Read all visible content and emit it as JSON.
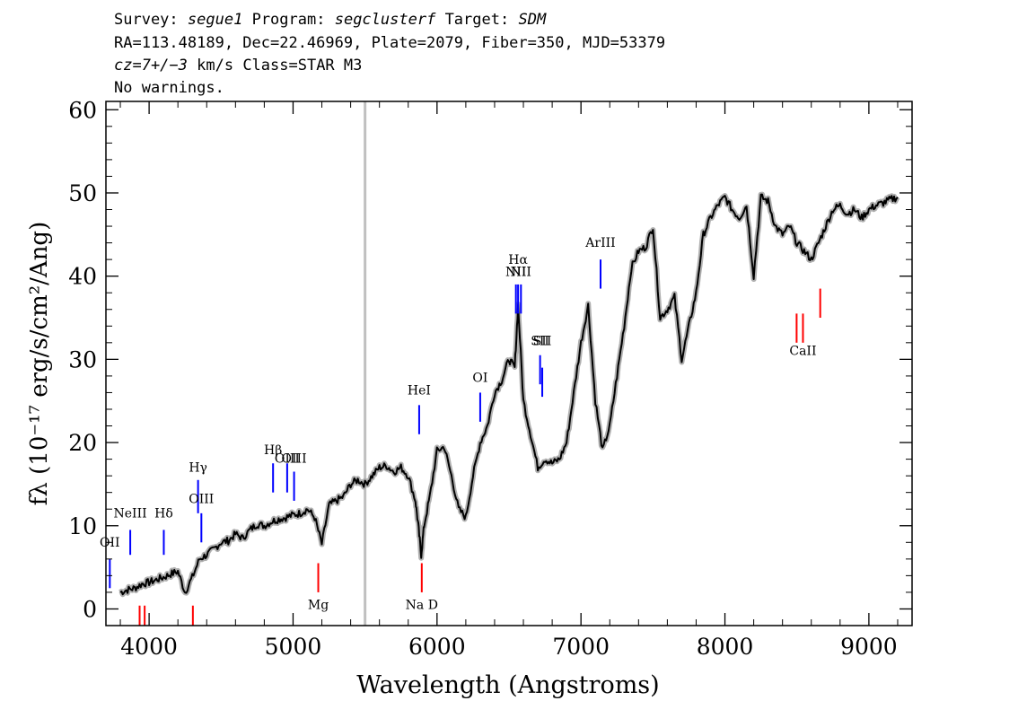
{
  "header": {
    "line1": {
      "survey_label": "Survey:",
      "survey": "segue1",
      "program_label": "Program:",
      "program": "segclusterf",
      "target_label": "Target:",
      "target": "SDM"
    },
    "line2": "RA=113.48189, Dec=22.46969, Plate=2079, Fiber=350, MJD=53379",
    "line3": {
      "cz": "cz=7+/−3",
      "cz_unit": "km/s Class=STAR M3"
    },
    "line4": "No warnings."
  },
  "chart_data": {
    "type": "line",
    "xlabel": "Wavelength (Angstroms)",
    "ylabel": "fλ (10⁻¹⁷ erg/s/cm²/Ang)",
    "xlim": [
      3700,
      9300
    ],
    "ylim": [
      -2,
      61
    ],
    "x_ticks": [
      4000,
      5000,
      6000,
      7000,
      8000,
      9000
    ],
    "y_ticks": [
      0,
      10,
      20,
      30,
      40,
      50,
      60
    ],
    "grid": false,
    "legend": "none",
    "marker_line_x": 5500,
    "colors": {
      "spectrum": "#000000",
      "error_band": "#b0b0b0",
      "emission": "#0000ff",
      "absorption": "#ff0000",
      "marker_line": "#c0c0c0"
    },
    "series": [
      {
        "x": [
          3800,
          3850,
          3900,
          3950,
          4000,
          4050,
          4100,
          4150,
          4200,
          4250,
          4300,
          4350,
          4400,
          4450,
          4500,
          4550,
          4600,
          4650,
          4700,
          4750,
          4800,
          4850,
          4900,
          4950,
          5000,
          5050,
          5100,
          5150,
          5200,
          5250,
          5300,
          5350,
          5400,
          5450,
          5500,
          5550,
          5600,
          5650,
          5700,
          5750,
          5800,
          5850,
          5870,
          5890,
          5910,
          5950,
          6000,
          6050,
          6100,
          6150,
          6200,
          6250,
          6300,
          6350,
          6400,
          6450,
          6500,
          6540,
          6563,
          6600,
          6650,
          6700,
          6750,
          6800,
          6850,
          6900,
          6950,
          7000,
          7050,
          7100,
          7150,
          7200,
          7250,
          7300,
          7350,
          7400,
          7450,
          7500,
          7550,
          7600,
          7650,
          7700,
          7750,
          7800,
          7850,
          7900,
          7950,
          8000,
          8050,
          8100,
          8150,
          8200,
          8250,
          8300,
          8350,
          8400,
          8450,
          8500,
          8550,
          8600,
          8650,
          8700,
          8750,
          8800,
          8850,
          8900,
          8950,
          9000,
          9050,
          9100,
          9150,
          9200
        ],
        "y": [
          2.0,
          2.3,
          2.5,
          3.0,
          3.2,
          3.5,
          3.8,
          4.2,
          4.5,
          2.0,
          3.8,
          6.0,
          6.5,
          7.2,
          8.0,
          8.2,
          9.0,
          8.5,
          9.5,
          10.2,
          10.0,
          10.5,
          10.8,
          11.0,
          11.3,
          11.5,
          12.0,
          11.0,
          7.8,
          12.5,
          13.0,
          13.5,
          15.0,
          15.5,
          15.0,
          16.0,
          17.0,
          17.2,
          16.5,
          17.0,
          16.0,
          13.0,
          10.0,
          6.5,
          10.0,
          13.5,
          19.0,
          19.5,
          16.0,
          12.0,
          11.0,
          16.0,
          20.0,
          22.0,
          26.0,
          27.5,
          30.0,
          29.0,
          36.5,
          25.0,
          21.0,
          17.0,
          18.0,
          17.5,
          18.0,
          20.0,
          26.0,
          32.0,
          36.5,
          25.0,
          19.0,
          22.0,
          28.0,
          34.0,
          41.0,
          43.0,
          43.5,
          46.0,
          35.0,
          36.0,
          37.5,
          30.0,
          34.0,
          38.0,
          45.0,
          47.0,
          48.5,
          49.5,
          48.0,
          47.0,
          48.5,
          40.0,
          49.5,
          49.0,
          46.0,
          45.0,
          46.0,
          44.0,
          43.0,
          42.0,
          44.0,
          46.0,
          48.0,
          48.5,
          47.5,
          48.0,
          47.0,
          48.0,
          48.5,
          48.8,
          49.2,
          49.5
        ]
      }
    ],
    "emission_lines": [
      {
        "label": "OII",
        "x": 3727,
        "y0": 2.5,
        "y1": 6.0,
        "label_y": 7.5
      },
      {
        "label": "NeIII",
        "x": 3869,
        "y0": 6.5,
        "y1": 9.5,
        "label_y": 11.0
      },
      {
        "label": "Hδ",
        "x": 4102,
        "y0": 6.5,
        "y1": 9.5,
        "label_y": 11.0
      },
      {
        "label": "Hγ",
        "x": 4340,
        "y0": 11.5,
        "y1": 15.5,
        "label_y": 16.5
      },
      {
        "label": "OIII",
        "x": 4363,
        "y0": 8.0,
        "y1": 11.5,
        "label_y": 12.7
      },
      {
        "label": "Hβ",
        "x": 4861,
        "y0": 14.0,
        "y1": 17.5,
        "label_y": 18.6
      },
      {
        "label": "OIII",
        "x": 4959,
        "y0": 14.0,
        "y1": 17.5,
        "label_y": 17.6
      },
      {
        "label": "OIII",
        "x": 5007,
        "y0": 13.0,
        "y1": 16.5,
        "label_y": 17.6
      },
      {
        "label": "HeI",
        "x": 5876,
        "y0": 21.0,
        "y1": 24.5,
        "label_y": 25.8
      },
      {
        "label": "OI",
        "x": 6300,
        "y0": 22.5,
        "y1": 26.0,
        "label_y": 27.3
      },
      {
        "label": "NII",
        "x": 6548,
        "y0": 35.5,
        "y1": 39.0,
        "label_y": 40.0
      },
      {
        "label": "Hα",
        "x": 6563,
        "y0": 35.5,
        "y1": 39.0,
        "label_y": 41.5
      },
      {
        "label": "NII",
        "x": 6583,
        "y0": 35.5,
        "y1": 39.0,
        "label_y": 40.0
      },
      {
        "label": "SII",
        "x": 6716,
        "y0": 27.0,
        "y1": 30.5,
        "label_y": 31.7
      },
      {
        "label": "SII",
        "x": 6731,
        "y0": 25.5,
        "y1": 29.0,
        "label_y": 31.7
      },
      {
        "label": "ArIII",
        "x": 7136,
        "y0": 38.5,
        "y1": 42.0,
        "label_y": 43.5
      }
    ],
    "absorption_lines": [
      {
        "label": "",
        "x": 3934,
        "y0": -2.0,
        "y1": 0.4
      },
      {
        "label": "",
        "x": 3969,
        "y0": -2.0,
        "y1": 0.4
      },
      {
        "label": "",
        "x": 4304,
        "y0": -2.0,
        "y1": 0.4
      },
      {
        "label": "Mg",
        "x": 5175,
        "y0": 2.0,
        "y1": 5.5,
        "label_y": 0.0
      },
      {
        "label": "Na D",
        "x": 5894,
        "y0": 2.0,
        "y1": 5.5,
        "label_y": 0.0
      },
      {
        "label": "",
        "x": 8498,
        "y0": 32.0,
        "y1": 35.5
      },
      {
        "label": "CaII",
        "x": 8542,
        "y0": 32.0,
        "y1": 35.5,
        "label_y": 30.5
      },
      {
        "label": "",
        "x": 8662,
        "y0": 35.0,
        "y1": 38.5
      }
    ]
  }
}
